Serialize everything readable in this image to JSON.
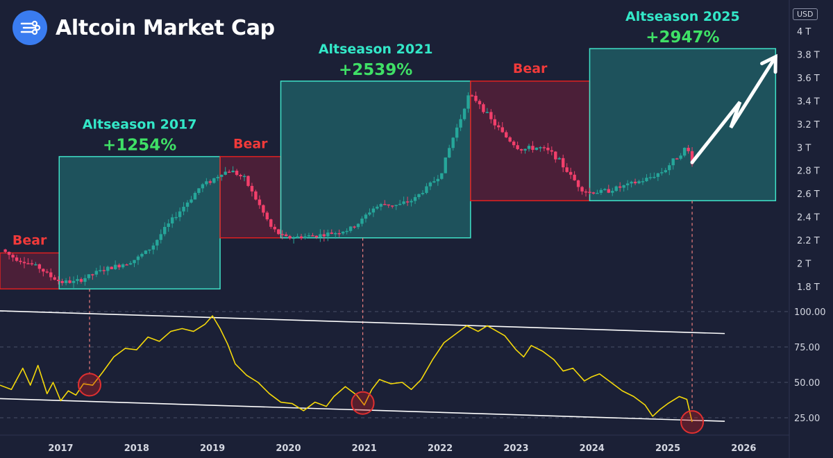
{
  "header": {
    "title": "Altcoin Market Cap",
    "logo_icon": "network-nodes-icon",
    "currency_badge": "USD"
  },
  "colors": {
    "background": "#1b2036",
    "bull": "#26a69a",
    "bear": "#f23f6b",
    "bull_label": "#33e8c8",
    "gain_label": "#3fe066",
    "bear_label": "#f23a3a",
    "oscillator": "#f5d90a",
    "trendline": "#ffffff",
    "marker": "#e03030"
  },
  "chart_data": [
    {
      "type": "candlestick",
      "y_unit": "T",
      "y_ticks": [
        "4 T",
        "3.8 T",
        "3.6 T",
        "3.4 T",
        "3.2 T",
        "3 T",
        "2.8 T",
        "2.6 T",
        "2.4 T",
        "2.2 T",
        "2 T",
        "1.8 T"
      ],
      "y_tick_values": [
        4.0,
        3.8,
        3.6,
        3.4,
        3.2,
        3.0,
        2.8,
        2.6,
        2.4,
        2.2,
        2.0,
        1.8
      ],
      "ylim": [
        1.72,
        4.04
      ],
      "xlim": [
        2016.2,
        2026.6
      ],
      "price_path": [
        [
          2016.22,
          2.12
        ],
        [
          2016.35,
          2.06
        ],
        [
          2016.5,
          2.02
        ],
        [
          2016.7,
          1.97
        ],
        [
          2016.88,
          1.88
        ],
        [
          2017.0,
          1.84
        ],
        [
          2017.2,
          1.84
        ],
        [
          2017.5,
          1.93
        ],
        [
          2017.8,
          1.99
        ],
        [
          2018.0,
          2.04
        ],
        [
          2018.2,
          2.14
        ],
        [
          2018.35,
          2.28
        ],
        [
          2018.5,
          2.4
        ],
        [
          2018.7,
          2.55
        ],
        [
          2018.85,
          2.67
        ],
        [
          2019.0,
          2.72
        ],
        [
          2019.12,
          2.78
        ],
        [
          2019.25,
          2.8
        ],
        [
          2019.42,
          2.73
        ],
        [
          2019.6,
          2.52
        ],
        [
          2019.78,
          2.3
        ],
        [
          2019.95,
          2.22
        ],
        [
          2020.2,
          2.23
        ],
        [
          2020.5,
          2.25
        ],
        [
          2020.8,
          2.29
        ],
        [
          2020.95,
          2.36
        ],
        [
          2021.1,
          2.47
        ],
        [
          2021.25,
          2.51
        ],
        [
          2021.45,
          2.5
        ],
        [
          2021.65,
          2.55
        ],
        [
          2021.85,
          2.67
        ],
        [
          2022.0,
          2.76
        ],
        [
          2022.15,
          3.05
        ],
        [
          2022.28,
          3.27
        ],
        [
          2022.36,
          3.44
        ],
        [
          2022.5,
          3.4
        ],
        [
          2022.65,
          3.25
        ],
        [
          2022.85,
          3.1
        ],
        [
          2023.05,
          2.98
        ],
        [
          2023.3,
          3.0
        ],
        [
          2023.5,
          2.94
        ],
        [
          2023.7,
          2.77
        ],
        [
          2023.85,
          2.65
        ],
        [
          2023.95,
          2.61
        ],
        [
          2024.15,
          2.62
        ],
        [
          2024.4,
          2.66
        ],
        [
          2024.7,
          2.72
        ],
        [
          2024.95,
          2.8
        ],
        [
          2025.15,
          2.94
        ],
        [
          2025.25,
          3.0
        ],
        [
          2025.32,
          2.87
        ]
      ],
      "zones": [
        {
          "kind": "bear",
          "label": "Bear",
          "gain": "",
          "x0": 2016.2,
          "x1": 2016.98,
          "y0": 1.78,
          "y1": 2.09
        },
        {
          "kind": "bull",
          "label": "Altseason 2017",
          "gain": "+1254%",
          "x0": 2016.98,
          "x1": 2019.1,
          "y0": 1.78,
          "y1": 2.92
        },
        {
          "kind": "bear",
          "label": "Bear",
          "gain": "",
          "x0": 2019.1,
          "x1": 2019.9,
          "y0": 2.22,
          "y1": 2.92
        },
        {
          "kind": "bull",
          "label": "Altseason 2021",
          "gain": "+2539%",
          "x0": 2019.9,
          "x1": 2022.4,
          "y0": 2.22,
          "y1": 3.57
        },
        {
          "kind": "bear",
          "label": "Bear",
          "gain": "",
          "x0": 2022.4,
          "x1": 2023.97,
          "y0": 2.54,
          "y1": 3.57
        },
        {
          "kind": "bull",
          "label": "Altseason 2025",
          "gain": "+2947%",
          "x0": 2023.97,
          "x1": 2026.42,
          "y0": 2.54,
          "y1": 3.85
        }
      ],
      "projection_arrow": [
        [
          2025.32,
          2.87
        ],
        [
          2025.95,
          3.39
        ],
        [
          2025.83,
          3.17
        ],
        [
          2026.42,
          3.78
        ]
      ]
    },
    {
      "type": "line",
      "y_ticks": [
        "100.00",
        "75.00",
        "50.00",
        "25.00"
      ],
      "y_tick_values": [
        100,
        75,
        50,
        25
      ],
      "ylim": [
        14,
        106
      ],
      "xlim": [
        2016.2,
        2026.6
      ],
      "x_ticks": [
        "2017",
        "2018",
        "2019",
        "2020",
        "2021",
        "2022",
        "2023",
        "2024",
        "2025",
        "2026"
      ],
      "x_tick_values": [
        2017,
        2018,
        2019,
        2020,
        2021,
        2022,
        2023,
        2024,
        2025,
        2026
      ],
      "series": [
        {
          "x": [
            2016.2,
            2016.35,
            2016.5,
            2016.6,
            2016.7,
            2016.82,
            2016.9,
            2017.0,
            2017.1,
            2017.2,
            2017.3,
            2017.42,
            2017.55,
            2017.7,
            2017.85,
            2018.0,
            2018.15,
            2018.3,
            2018.45,
            2018.6,
            2018.75,
            2018.9,
            2019.0,
            2019.1,
            2019.2,
            2019.3,
            2019.45,
            2019.6,
            2019.75,
            2019.9,
            2020.05,
            2020.2,
            2020.35,
            2020.5,
            2020.6,
            2020.75,
            2020.9,
            2021.0,
            2021.1,
            2021.2,
            2021.35,
            2021.5,
            2021.62,
            2021.75,
            2021.9,
            2022.05,
            2022.2,
            2022.35,
            2022.5,
            2022.62,
            2022.72,
            2022.85,
            2023.0,
            2023.1,
            2023.2,
            2023.35,
            2023.5,
            2023.62,
            2023.75,
            2023.9,
            2024.0,
            2024.1,
            2024.25,
            2024.4,
            2024.55,
            2024.7,
            2024.8,
            2024.9,
            2025.0,
            2025.15,
            2025.25,
            2025.32
          ],
          "values": [
            48,
            45,
            60,
            48,
            62,
            42,
            50,
            37,
            44,
            41,
            49,
            48,
            57,
            68,
            74,
            73,
            82,
            79,
            86,
            88,
            86,
            91,
            97,
            88,
            77,
            63,
            55,
            50,
            42,
            36,
            35,
            30,
            36,
            33,
            40,
            47,
            41,
            34,
            45,
            52,
            49,
            50,
            45,
            52,
            66,
            78,
            84,
            90,
            86,
            90,
            87,
            83,
            73,
            68,
            76,
            72,
            66,
            58,
            60,
            51,
            54,
            56,
            50,
            44,
            40,
            34,
            26,
            31,
            35,
            40,
            38,
            22
          ]
        }
      ],
      "trendlines": [
        [
          [
            2016.2,
            100.5
          ],
          [
            2025.75,
            84.5
          ]
        ],
        [
          [
            2016.2,
            38.5
          ],
          [
            2025.75,
            22.5
          ]
        ]
      ],
      "markers": [
        2017.38,
        2020.98,
        2025.32
      ]
    }
  ]
}
